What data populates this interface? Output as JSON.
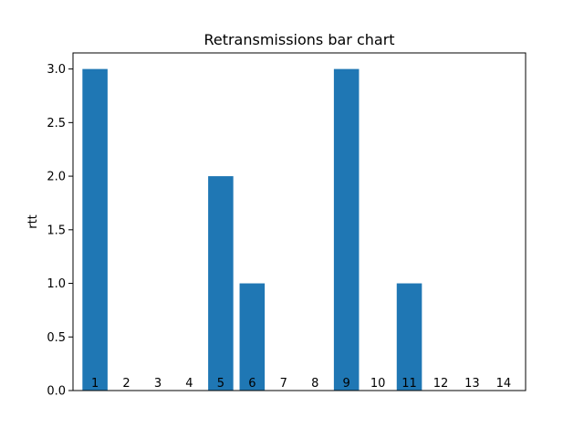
{
  "chart_data": {
    "type": "bar",
    "title": "Retransmissions bar chart",
    "xlabel": "",
    "ylabel": "rtt",
    "categories": [
      "1",
      "2",
      "3",
      "4",
      "5",
      "6",
      "7",
      "8",
      "9",
      "10",
      "11",
      "12",
      "13",
      "14"
    ],
    "values": [
      3,
      0,
      0,
      0,
      2,
      1,
      0,
      0,
      3,
      0,
      1,
      0,
      0,
      0
    ],
    "ylim": [
      0,
      3.15
    ],
    "yticks": [
      "0.0",
      "0.5",
      "1.0",
      "1.5",
      "2.0",
      "2.5",
      "3.0"
    ],
    "grid": false,
    "bar_color": "#1f77b4"
  }
}
